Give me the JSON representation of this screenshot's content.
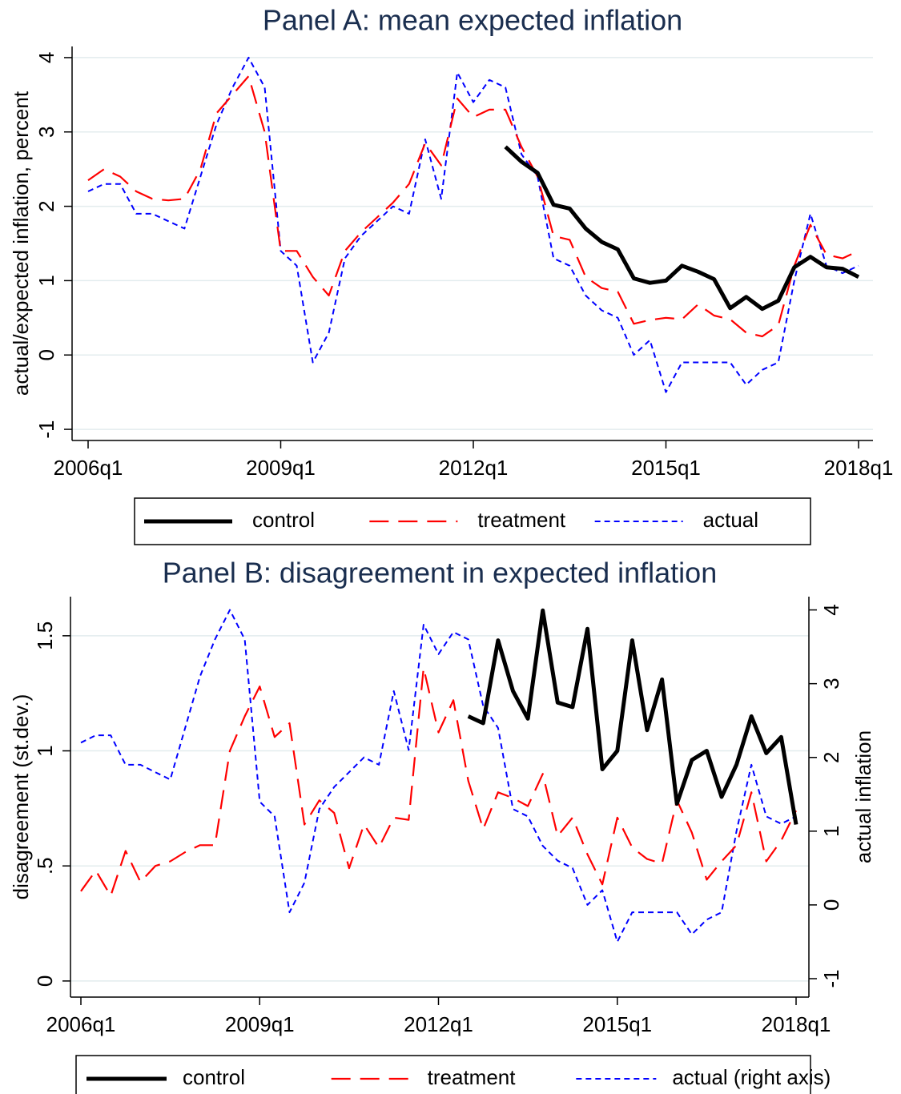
{
  "chart_data": [
    {
      "type": "line",
      "title": "Panel A: mean expected inflation",
      "y_label": "actual/expected inflation, percent",
      "x": [
        "2006q1",
        "2006q2",
        "2006q3",
        "2006q4",
        "2007q1",
        "2007q2",
        "2007q3",
        "2007q4",
        "2008q1",
        "2008q2",
        "2008q3",
        "2008q4",
        "2009q1",
        "2009q2",
        "2009q3",
        "2009q4",
        "2010q1",
        "2010q2",
        "2010q3",
        "2010q4",
        "2011q1",
        "2011q2",
        "2011q3",
        "2011q4",
        "2012q1",
        "2012q2",
        "2012q3",
        "2012q4",
        "2013q1",
        "2013q2",
        "2013q3",
        "2013q4",
        "2014q1",
        "2014q2",
        "2014q3",
        "2014q4",
        "2015q1",
        "2015q2",
        "2015q3",
        "2015q4",
        "2016q1",
        "2016q2",
        "2016q3",
        "2016q4",
        "2017q1",
        "2017q2",
        "2017q3",
        "2017q4",
        "2018q1"
      ],
      "xticks": [
        "2006q1",
        "2009q1",
        "2012q1",
        "2015q1",
        "2018q1"
      ],
      "ylim": [
        -1.15,
        4.15
      ],
      "yticks": [
        -1,
        0,
        1,
        2,
        3,
        4
      ],
      "grid": true,
      "series": [
        {
          "name": "control",
          "color": "#000000",
          "line_style": "solid",
          "values": [
            null,
            null,
            null,
            null,
            null,
            null,
            null,
            null,
            null,
            null,
            null,
            null,
            null,
            null,
            null,
            null,
            null,
            null,
            null,
            null,
            null,
            null,
            null,
            null,
            null,
            null,
            2.8,
            2.6,
            2.45,
            2.02,
            1.97,
            1.7,
            1.52,
            1.42,
            1.03,
            0.97,
            1.0,
            1.2,
            1.12,
            1.02,
            0.63,
            0.78,
            0.62,
            0.73,
            1.18,
            1.32,
            1.18,
            1.16,
            1.05
          ]
        },
        {
          "name": "treatment",
          "color": "#ff0000",
          "line_style": "long-dash",
          "values": [
            2.35,
            2.5,
            2.4,
            2.2,
            2.1,
            2.08,
            2.1,
            2.5,
            3.25,
            3.5,
            3.75,
            3.0,
            1.4,
            1.4,
            1.05,
            0.8,
            1.4,
            1.65,
            1.85,
            2.05,
            2.3,
            2.85,
            2.55,
            3.45,
            3.2,
            3.3,
            3.3,
            2.8,
            2.4,
            1.6,
            1.55,
            1.05,
            0.9,
            0.85,
            0.42,
            0.47,
            0.5,
            0.48,
            0.68,
            0.53,
            0.48,
            0.3,
            0.25,
            0.4,
            1.2,
            1.75,
            1.35,
            1.3,
            1.4
          ]
        },
        {
          "name": "actual",
          "color": "#0000ff",
          "line_style": "short-dash",
          "values": [
            2.2,
            2.3,
            2.3,
            1.9,
            1.9,
            1.8,
            1.7,
            2.4,
            3.1,
            3.6,
            4.0,
            3.6,
            1.4,
            1.2,
            -0.1,
            0.3,
            1.3,
            1.6,
            1.8,
            2.0,
            1.9,
            2.9,
            2.1,
            3.8,
            3.4,
            3.7,
            3.6,
            2.7,
            2.4,
            1.3,
            1.2,
            0.8,
            0.6,
            0.5,
            0.0,
            0.2,
            -0.5,
            -0.1,
            -0.1,
            -0.1,
            -0.1,
            -0.4,
            -0.2,
            -0.1,
            1.0,
            1.9,
            1.2,
            1.1,
            1.2
          ]
        }
      ]
    },
    {
      "type": "line",
      "title": "Panel B: disagreement in expected inflation",
      "y_label": "disagreement (st.dev.)",
      "y2_label": "actual inflation",
      "x": [
        "2006q1",
        "2006q2",
        "2006q3",
        "2006q4",
        "2007q1",
        "2007q2",
        "2007q3",
        "2007q4",
        "2008q1",
        "2008q2",
        "2008q3",
        "2008q4",
        "2009q1",
        "2009q2",
        "2009q3",
        "2009q4",
        "2010q1",
        "2010q2",
        "2010q3",
        "2010q4",
        "2011q1",
        "2011q2",
        "2011q3",
        "2011q4",
        "2012q1",
        "2012q2",
        "2012q3",
        "2012q4",
        "2013q1",
        "2013q2",
        "2013q3",
        "2013q4",
        "2014q1",
        "2014q2",
        "2014q3",
        "2014q4",
        "2015q1",
        "2015q2",
        "2015q3",
        "2015q4",
        "2016q1",
        "2016q2",
        "2016q3",
        "2016q4",
        "2017q1",
        "2017q2",
        "2017q3",
        "2017q4",
        "2018q1"
      ],
      "xticks": [
        "2006q1",
        "2009q1",
        "2012q1",
        "2015q1",
        "2018q1"
      ],
      "ylim": [
        -0.07,
        1.67
      ],
      "yticks": [
        0,
        {
          "value": 0.5,
          "label": ".5"
        },
        1,
        1.5
      ],
      "y2lim": [
        -1.25,
        4.18
      ],
      "y2ticks": [
        -1,
        0,
        1,
        2,
        3,
        4
      ],
      "grid": true,
      "series": [
        {
          "name": "control",
          "color": "#000000",
          "line_style": "solid",
          "values": [
            null,
            null,
            null,
            null,
            null,
            null,
            null,
            null,
            null,
            null,
            null,
            null,
            null,
            null,
            null,
            null,
            null,
            null,
            null,
            null,
            null,
            null,
            null,
            null,
            null,
            null,
            1.15,
            1.12,
            1.48,
            1.26,
            1.14,
            1.61,
            1.21,
            1.19,
            1.53,
            0.92,
            1.0,
            1.48,
            1.09,
            1.31,
            0.77,
            0.96,
            1.0,
            0.8,
            0.94,
            1.15,
            0.99,
            1.06,
            0.68
          ]
        },
        {
          "name": "treatment",
          "color": "#ff0000",
          "line_style": "long-dash",
          "values": [
            0.39,
            0.48,
            0.37,
            0.565,
            0.43,
            0.5,
            0.52,
            0.56,
            0.59,
            0.59,
            1.0,
            1.15,
            1.28,
            1.06,
            1.12,
            0.68,
            0.785,
            0.73,
            0.49,
            0.68,
            0.58,
            0.71,
            0.7,
            1.36,
            1.08,
            1.22,
            0.87,
            0.66,
            0.82,
            0.795,
            0.76,
            0.9,
            0.63,
            0.71,
            0.55,
            0.42,
            0.71,
            0.58,
            0.53,
            0.51,
            0.785,
            0.645,
            0.44,
            0.52,
            0.59,
            0.82,
            0.52,
            0.61,
            0.74
          ]
        },
        {
          "name": "actual (right axis)",
          "color": "#0000ff",
          "line_style": "short-dash",
          "axis": "y2",
          "values": [
            2.2,
            2.3,
            2.3,
            1.9,
            1.9,
            1.8,
            1.7,
            2.4,
            3.1,
            3.6,
            4.0,
            3.6,
            1.4,
            1.2,
            -0.1,
            0.3,
            1.3,
            1.6,
            1.8,
            2.0,
            1.9,
            2.9,
            2.1,
            3.8,
            3.4,
            3.7,
            3.6,
            2.7,
            2.4,
            1.3,
            1.2,
            0.8,
            0.6,
            0.5,
            0.0,
            0.2,
            -0.5,
            -0.1,
            -0.1,
            -0.1,
            -0.1,
            -0.4,
            -0.2,
            -0.1,
            1.0,
            1.9,
            1.2,
            1.1,
            1.2
          ]
        }
      ]
    }
  ]
}
